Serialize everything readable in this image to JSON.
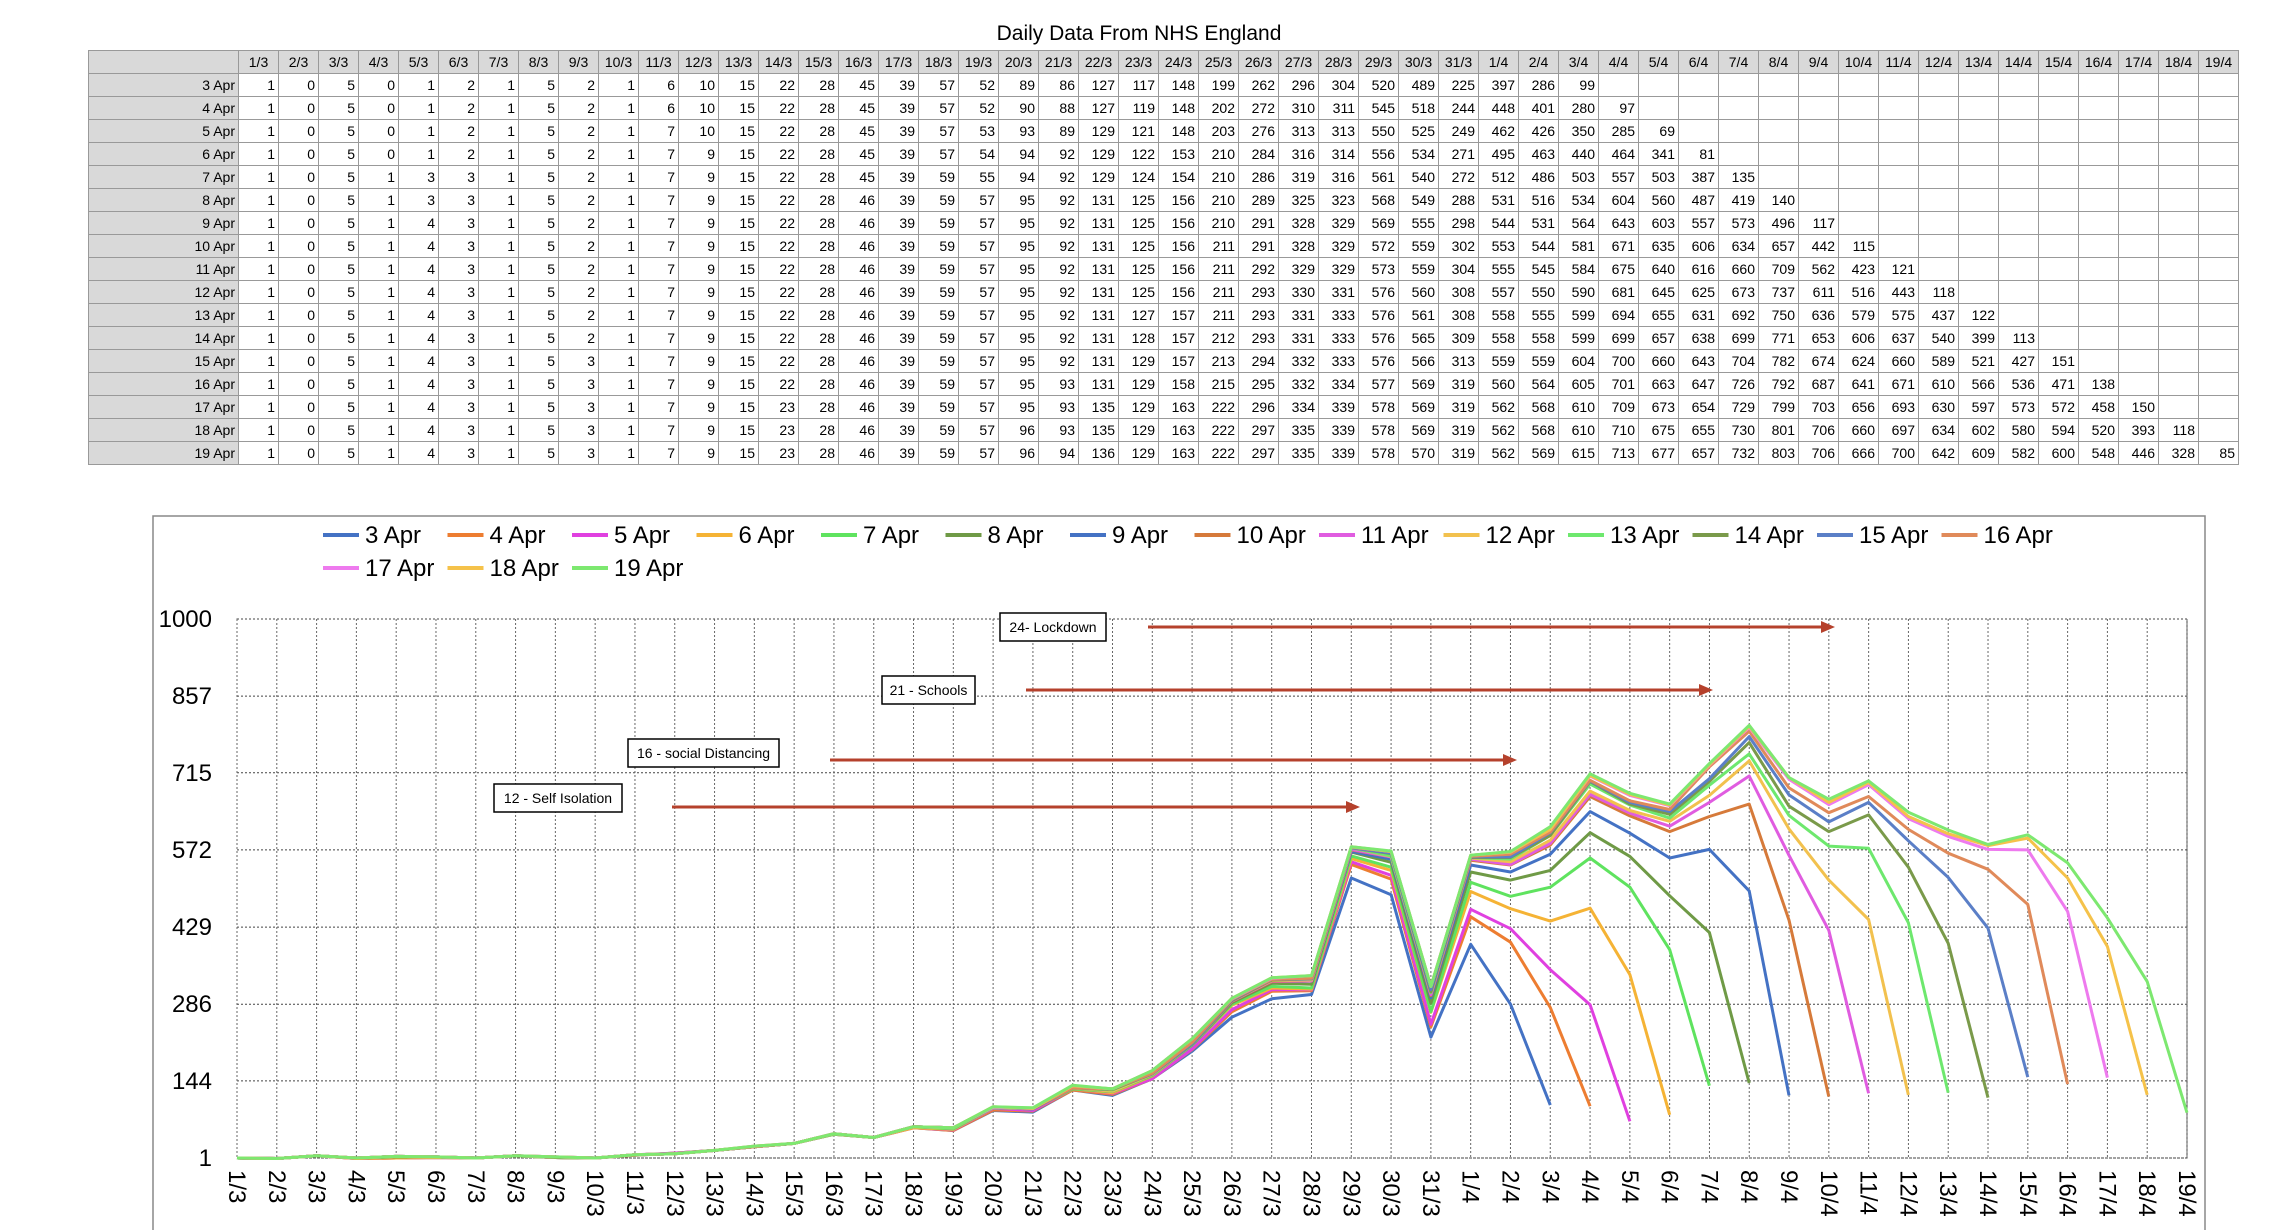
{
  "title": "Daily Data From NHS England",
  "chart_data": {
    "type": "line",
    "categories": [
      "1/3",
      "2/3",
      "3/3",
      "4/3",
      "5/3",
      "6/3",
      "7/3",
      "8/3",
      "9/3",
      "10/3",
      "11/3",
      "12/3",
      "13/3",
      "14/3",
      "15/3",
      "16/3",
      "17/3",
      "18/3",
      "19/3",
      "20/3",
      "21/3",
      "22/3",
      "23/3",
      "24/3",
      "25/3",
      "26/3",
      "27/3",
      "28/3",
      "29/3",
      "30/3",
      "31/3",
      "1/4",
      "2/4",
      "3/4",
      "4/4",
      "5/4",
      "6/4",
      "7/4",
      "8/4",
      "9/4",
      "10/4",
      "11/4",
      "12/4",
      "13/4",
      "14/4",
      "15/4",
      "16/4",
      "17/4",
      "18/4",
      "19/4"
    ],
    "ylim": [
      1,
      1000
    ],
    "yticks": [
      1,
      144,
      286,
      429,
      572,
      715,
      857,
      1000
    ],
    "grid": true,
    "annotations": [
      "24- Lockdown",
      "21 - Schools",
      "16 - social Distancing",
      "12 - Self Isolation"
    ],
    "series": [
      {
        "name": "3 Apr",
        "color": "#4472c4",
        "values": [
          1,
          0,
          5,
          0,
          1,
          2,
          1,
          5,
          2,
          1,
          6,
          10,
          15,
          22,
          28,
          45,
          39,
          57,
          52,
          89,
          86,
          127,
          117,
          148,
          199,
          262,
          296,
          304,
          520,
          489,
          225,
          397,
          286,
          99,
          null,
          null,
          null,
          null,
          null,
          null,
          null,
          null,
          null,
          null,
          null,
          null,
          null,
          null,
          null,
          null
        ]
      },
      {
        "name": "4 Apr",
        "color": "#ed7d31",
        "values": [
          1,
          0,
          5,
          0,
          1,
          2,
          1,
          5,
          2,
          1,
          6,
          10,
          15,
          22,
          28,
          45,
          39,
          57,
          52,
          90,
          88,
          127,
          119,
          148,
          202,
          272,
          310,
          311,
          545,
          518,
          244,
          448,
          401,
          280,
          97,
          null,
          null,
          null,
          null,
          null,
          null,
          null,
          null,
          null,
          null,
          null,
          null,
          null,
          null,
          null
        ]
      },
      {
        "name": "5 Apr",
        "color": "#e040e0",
        "values": [
          1,
          0,
          5,
          0,
          1,
          2,
          1,
          5,
          2,
          1,
          7,
          10,
          15,
          22,
          28,
          45,
          39,
          57,
          53,
          93,
          89,
          129,
          121,
          148,
          203,
          276,
          313,
          313,
          550,
          525,
          249,
          462,
          426,
          350,
          285,
          69,
          null,
          null,
          null,
          null,
          null,
          null,
          null,
          null,
          null,
          null,
          null,
          null,
          null,
          null
        ]
      },
      {
        "name": "6 Apr",
        "color": "#f5b335",
        "values": [
          1,
          0,
          5,
          0,
          1,
          2,
          1,
          5,
          2,
          1,
          7,
          9,
          15,
          22,
          28,
          45,
          39,
          57,
          54,
          94,
          92,
          129,
          122,
          153,
          210,
          284,
          316,
          314,
          556,
          534,
          271,
          495,
          463,
          440,
          464,
          341,
          81,
          null,
          null,
          null,
          null,
          null,
          null,
          null,
          null,
          null,
          null,
          null,
          null,
          null
        ]
      },
      {
        "name": "7 Apr",
        "color": "#5fe35f",
        "values": [
          1,
          0,
          5,
          1,
          3,
          3,
          1,
          5,
          2,
          1,
          7,
          9,
          15,
          22,
          28,
          45,
          39,
          59,
          55,
          94,
          92,
          129,
          124,
          154,
          210,
          286,
          319,
          316,
          561,
          540,
          272,
          512,
          486,
          503,
          557,
          503,
          387,
          135,
          null,
          null,
          null,
          null,
          null,
          null,
          null,
          null,
          null,
          null,
          null,
          null
        ]
      },
      {
        "name": "8 Apr",
        "color": "#6f9a46",
        "values": [
          1,
          0,
          5,
          1,
          3,
          3,
          1,
          5,
          2,
          1,
          7,
          9,
          15,
          22,
          28,
          46,
          39,
          59,
          57,
          95,
          92,
          131,
          125,
          156,
          210,
          289,
          325,
          323,
          568,
          549,
          288,
          531,
          516,
          534,
          604,
          560,
          487,
          419,
          140,
          null,
          null,
          null,
          null,
          null,
          null,
          null,
          null,
          null,
          null,
          null
        ]
      },
      {
        "name": "9 Apr",
        "color": "#4472c4",
        "values": [
          1,
          0,
          5,
          1,
          4,
          3,
          1,
          5,
          2,
          1,
          7,
          9,
          15,
          22,
          28,
          46,
          39,
          59,
          57,
          95,
          92,
          131,
          125,
          156,
          210,
          291,
          328,
          329,
          569,
          555,
          298,
          544,
          531,
          564,
          643,
          603,
          557,
          573,
          496,
          117,
          null,
          null,
          null,
          null,
          null,
          null,
          null,
          null,
          null,
          null
        ]
      },
      {
        "name": "10 Apr",
        "color": "#d67a3a",
        "values": [
          1,
          0,
          5,
          1,
          4,
          3,
          1,
          5,
          2,
          1,
          7,
          9,
          15,
          22,
          28,
          46,
          39,
          59,
          57,
          95,
          92,
          131,
          125,
          156,
          211,
          291,
          328,
          329,
          572,
          559,
          302,
          553,
          544,
          581,
          671,
          635,
          606,
          634,
          657,
          442,
          115,
          null,
          null,
          null,
          null,
          null,
          null,
          null,
          null,
          null
        ]
      },
      {
        "name": "11 Apr",
        "color": "#e05ce0",
        "values": [
          1,
          0,
          5,
          1,
          4,
          3,
          1,
          5,
          2,
          1,
          7,
          9,
          15,
          22,
          28,
          46,
          39,
          59,
          57,
          95,
          92,
          131,
          125,
          156,
          211,
          292,
          329,
          329,
          573,
          559,
          304,
          555,
          545,
          584,
          675,
          640,
          616,
          660,
          709,
          562,
          423,
          121,
          null,
          null,
          null,
          null,
          null,
          null,
          null,
          null
        ]
      },
      {
        "name": "12 Apr",
        "color": "#f2c14e",
        "values": [
          1,
          0,
          5,
          1,
          4,
          3,
          1,
          5,
          2,
          1,
          7,
          9,
          15,
          22,
          28,
          46,
          39,
          59,
          57,
          95,
          92,
          131,
          125,
          156,
          211,
          293,
          330,
          331,
          576,
          560,
          308,
          557,
          550,
          590,
          681,
          645,
          625,
          673,
          737,
          611,
          516,
          443,
          118,
          null,
          null,
          null,
          null,
          null,
          null,
          null
        ]
      },
      {
        "name": "13 Apr",
        "color": "#6ee86e",
        "values": [
          1,
          0,
          5,
          1,
          4,
          3,
          1,
          5,
          2,
          1,
          7,
          9,
          15,
          22,
          28,
          46,
          39,
          59,
          57,
          95,
          92,
          131,
          127,
          157,
          211,
          293,
          331,
          333,
          576,
          561,
          308,
          558,
          555,
          599,
          694,
          655,
          631,
          692,
          750,
          636,
          579,
          575,
          437,
          122,
          null,
          null,
          null,
          null,
          null,
          null
        ]
      },
      {
        "name": "14 Apr",
        "color": "#7a9a4a",
        "values": [
          1,
          0,
          5,
          1,
          4,
          3,
          1,
          5,
          2,
          1,
          7,
          9,
          15,
          22,
          28,
          46,
          39,
          59,
          57,
          95,
          92,
          131,
          128,
          157,
          212,
          293,
          331,
          333,
          576,
          565,
          309,
          558,
          558,
          599,
          699,
          657,
          638,
          699,
          771,
          653,
          606,
          637,
          540,
          399,
          113,
          null,
          null,
          null,
          null,
          null
        ]
      },
      {
        "name": "15 Apr",
        "color": "#5b7fc7",
        "values": [
          1,
          0,
          5,
          1,
          4,
          3,
          1,
          5,
          3,
          1,
          7,
          9,
          15,
          22,
          28,
          46,
          39,
          59,
          57,
          95,
          92,
          131,
          129,
          157,
          213,
          294,
          332,
          333,
          576,
          566,
          313,
          559,
          559,
          604,
          700,
          660,
          643,
          704,
          782,
          674,
          624,
          660,
          589,
          521,
          427,
          151,
          null,
          null,
          null,
          null
        ]
      },
      {
        "name": "16 Apr",
        "color": "#e08a5a",
        "values": [
          1,
          0,
          5,
          1,
          4,
          3,
          1,
          5,
          3,
          1,
          7,
          9,
          15,
          22,
          28,
          46,
          39,
          59,
          57,
          95,
          93,
          131,
          129,
          158,
          215,
          295,
          332,
          334,
          577,
          569,
          319,
          560,
          564,
          605,
          701,
          663,
          647,
          726,
          792,
          687,
          641,
          671,
          610,
          566,
          536,
          471,
          138,
          null,
          null,
          null
        ]
      },
      {
        "name": "17 Apr",
        "color": "#ee7aee",
        "values": [
          1,
          0,
          5,
          1,
          4,
          3,
          1,
          5,
          3,
          1,
          7,
          9,
          15,
          23,
          28,
          46,
          39,
          59,
          57,
          95,
          93,
          135,
          129,
          163,
          222,
          296,
          334,
          339,
          578,
          569,
          319,
          562,
          568,
          610,
          709,
          673,
          654,
          729,
          799,
          703,
          656,
          693,
          630,
          597,
          573,
          572,
          458,
          150,
          null,
          null
        ]
      },
      {
        "name": "18 Apr",
        "color": "#f5c24a",
        "values": [
          1,
          0,
          5,
          1,
          4,
          3,
          1,
          5,
          3,
          1,
          7,
          9,
          15,
          23,
          28,
          46,
          39,
          59,
          57,
          96,
          93,
          135,
          129,
          163,
          222,
          297,
          335,
          339,
          578,
          569,
          319,
          562,
          568,
          610,
          710,
          675,
          655,
          730,
          801,
          706,
          660,
          697,
          634,
          602,
          580,
          594,
          520,
          393,
          118,
          null
        ]
      },
      {
        "name": "19 Apr",
        "color": "#7de870",
        "values": [
          1,
          0,
          5,
          1,
          4,
          3,
          1,
          5,
          3,
          1,
          7,
          9,
          15,
          23,
          28,
          46,
          39,
          59,
          57,
          96,
          94,
          136,
          129,
          163,
          222,
          297,
          335,
          339,
          578,
          570,
          319,
          562,
          569,
          615,
          713,
          677,
          657,
          732,
          803,
          706,
          666,
          700,
          642,
          609,
          582,
          600,
          548,
          446,
          328,
          85
        ]
      }
    ]
  }
}
